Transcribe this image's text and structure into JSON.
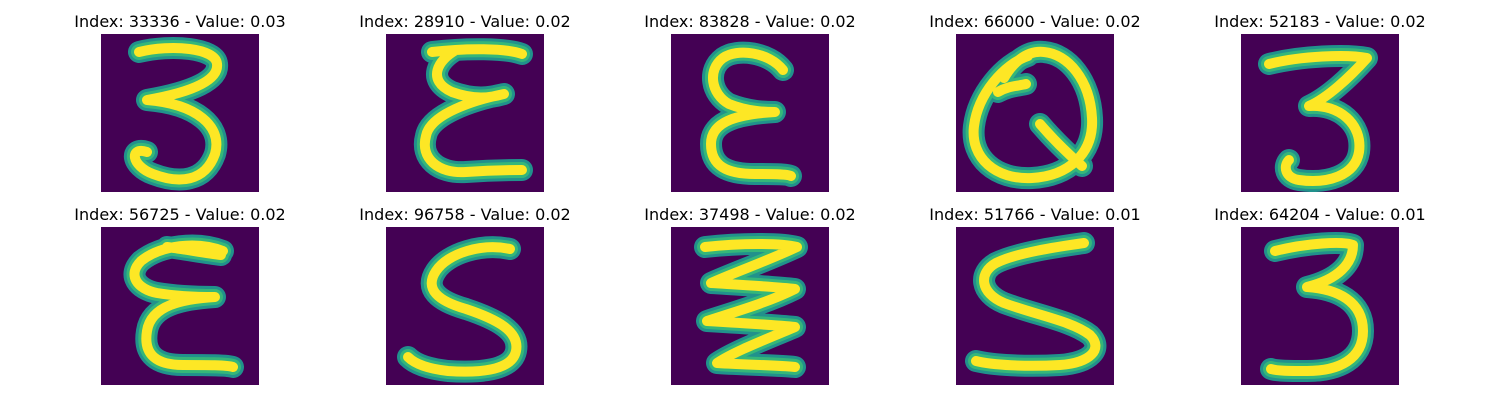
{
  "panels": [
    {
      "title": "Index: 33336 - Value: 0.03",
      "glyph": "3"
    },
    {
      "title": "Index: 28910 - Value: 0.02",
      "glyph": "E"
    },
    {
      "title": "Index: 83828 - Value: 0.02",
      "glyph": "E"
    },
    {
      "title": "Index: 66000 - Value: 0.02",
      "glyph": "Q"
    },
    {
      "title": "Index: 52183 - Value: 0.02",
      "glyph": "3"
    },
    {
      "title": "Index: 56725 - Value: 0.02",
      "glyph": "E"
    },
    {
      "title": "Index: 96758 - Value: 0.02",
      "glyph": "S"
    },
    {
      "title": "Index: 37498 - Value: 0.02",
      "glyph": "Z"
    },
    {
      "title": "Index: 51766 - Value: 0.01",
      "glyph": "S"
    },
    {
      "title": "Index: 64204 - Value: 0.01",
      "glyph": "3"
    }
  ],
  "colors": {
    "background": "#440154",
    "stroke_core": "#fde725",
    "stroke_halo": "#35b779",
    "stroke_outer": "#21918c"
  }
}
